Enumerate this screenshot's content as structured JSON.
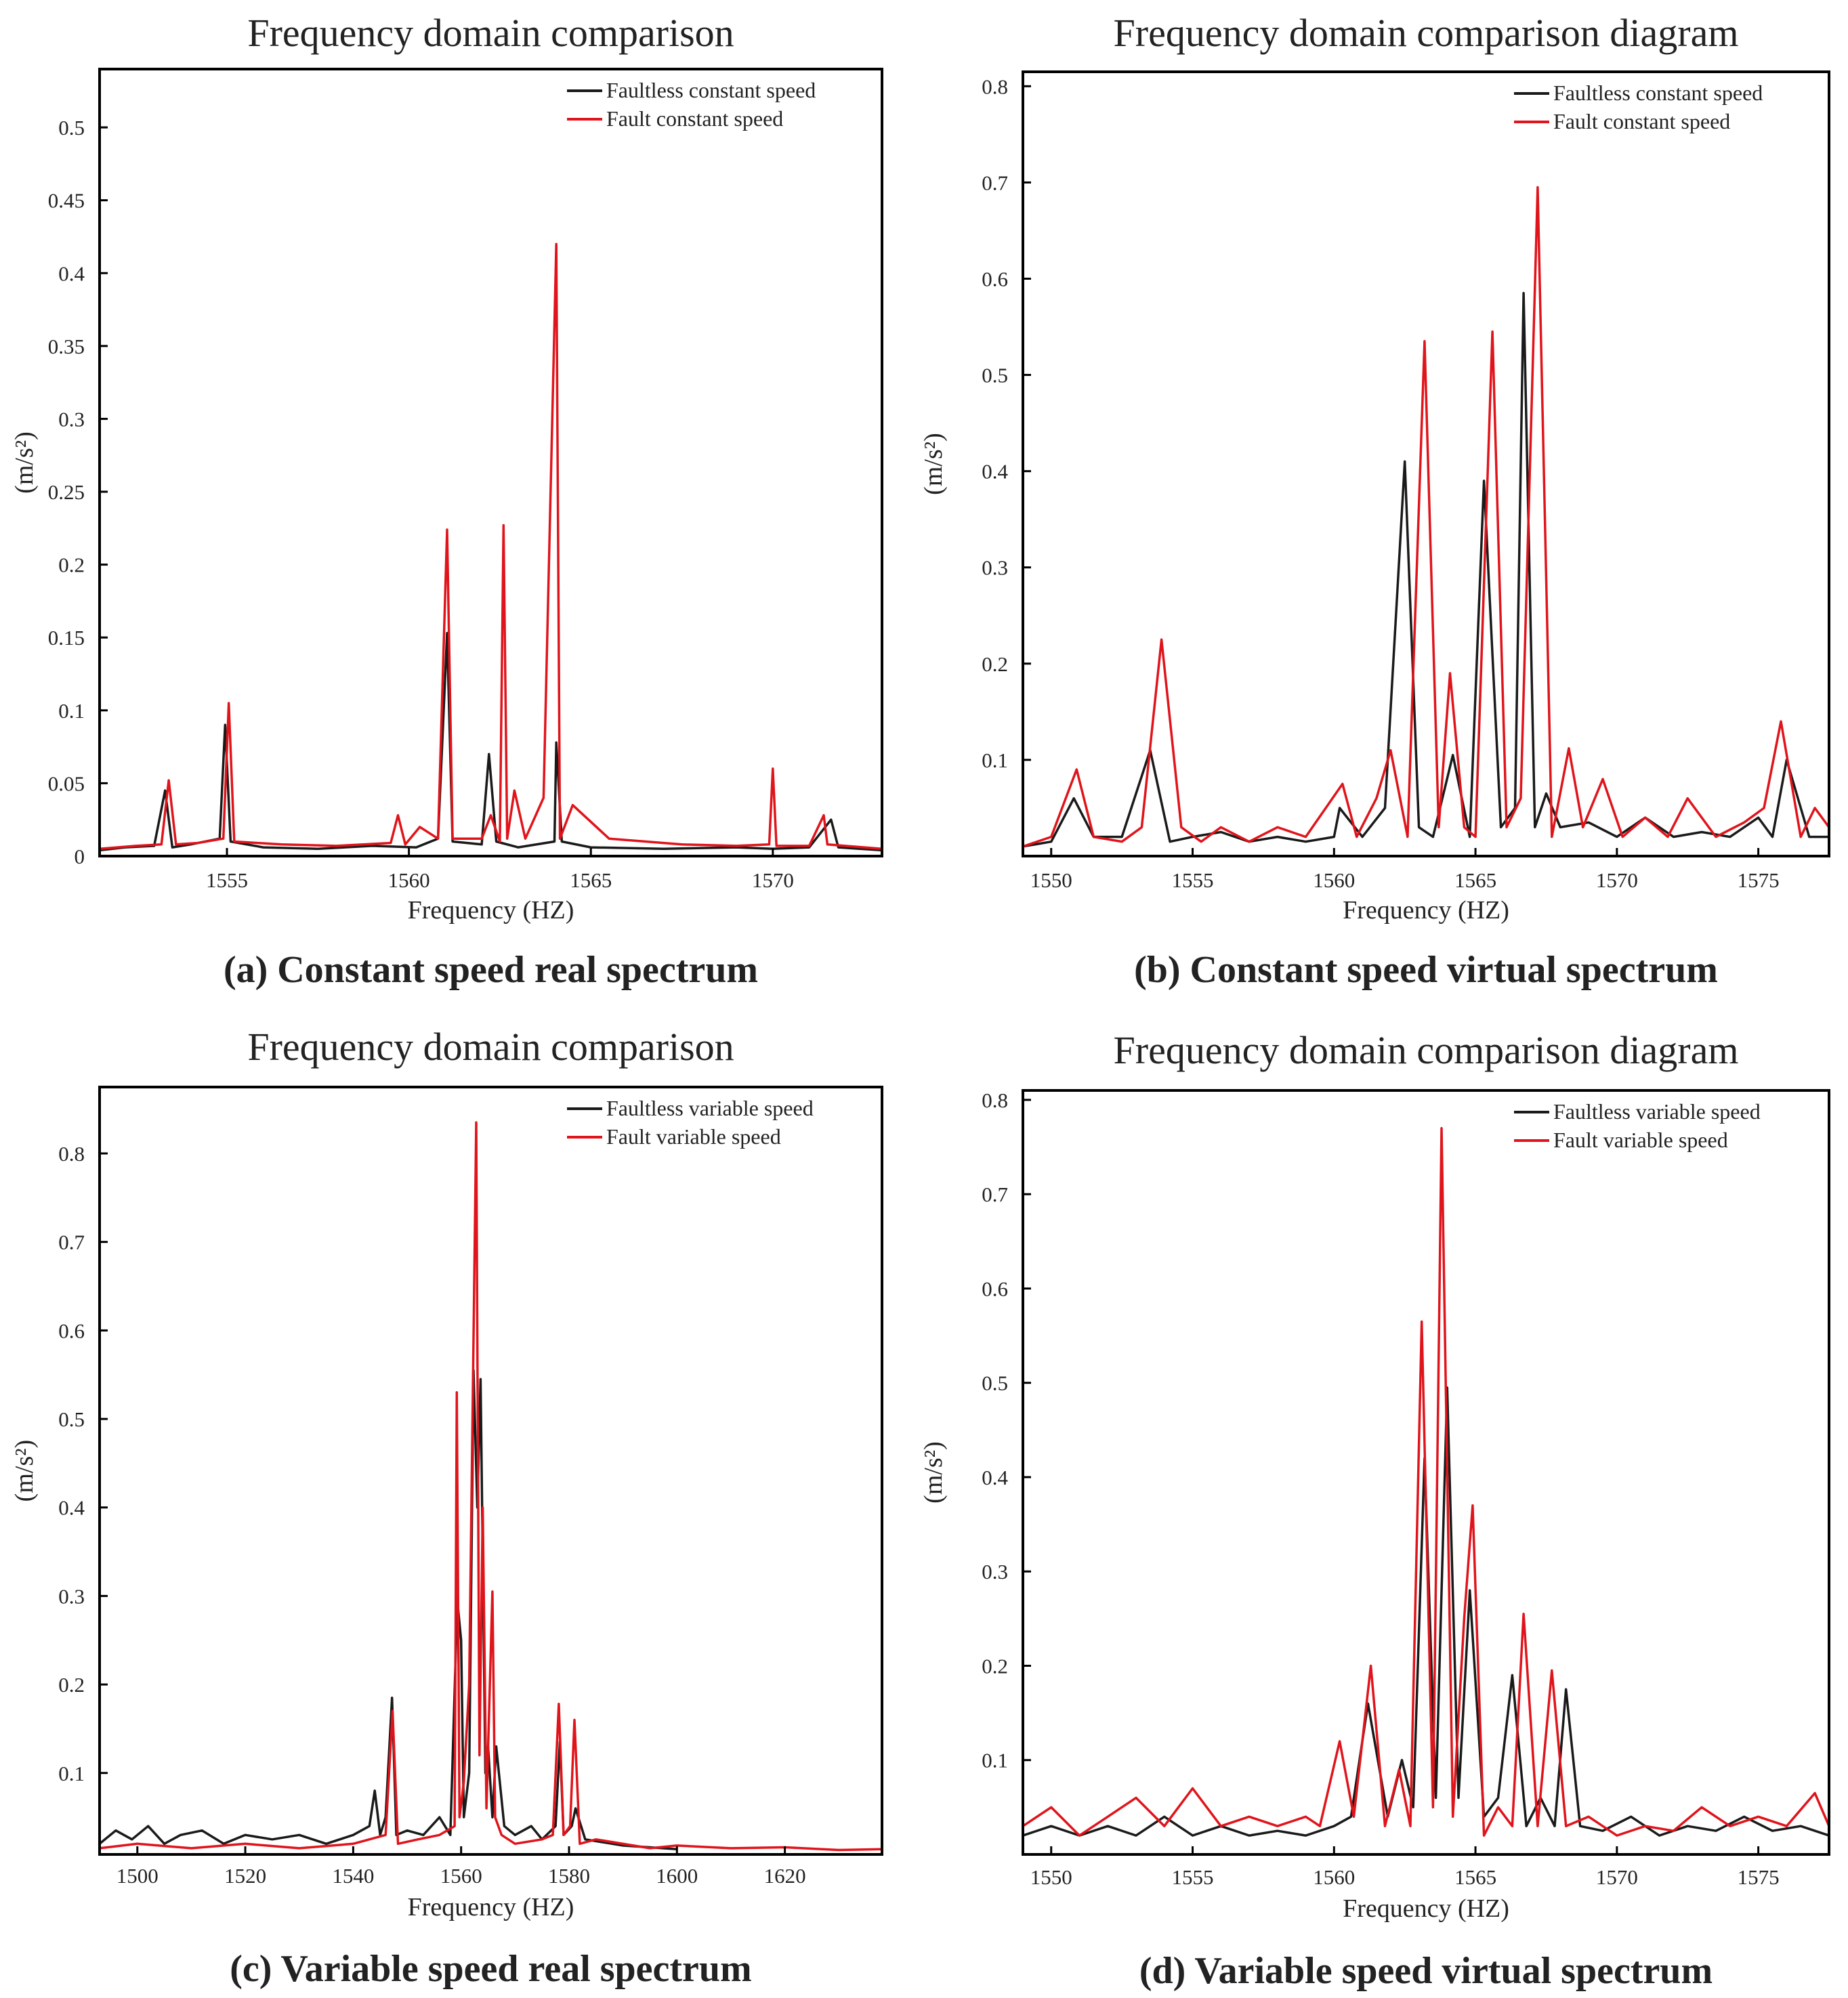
{
  "colors": {
    "faultless": "#1a1a1a",
    "fault": "#e0141b"
  },
  "chart_data": [
    {
      "id": "a",
      "type": "line",
      "title": "Frequency domain comparison",
      "caption": "(a) Constant speed real spectrum",
      "xlabel": "Frequency (HZ)",
      "ylabel": "(m/s²)",
      "xlim": [
        1551.5,
        1573
      ],
      "ylim": [
        0,
        0.54
      ],
      "xticks": [
        1555,
        1560,
        1565,
        1570
      ],
      "yticks": [
        0,
        0.05,
        0.1,
        0.15,
        0.2,
        0.25,
        0.3,
        0.35,
        0.4,
        0.45,
        0.5
      ],
      "ytick_labels": [
        "0",
        "0.05",
        "0.1",
        "0.15",
        "0.2",
        "0.25",
        "0.3",
        "0.35",
        "0.4",
        "0.45",
        "0.5"
      ],
      "legend_position": "top-right",
      "series": [
        {
          "name": "Faultless constant speed",
          "role": "faultless",
          "x": [
            1551.5,
            1552.2,
            1553.0,
            1553.3,
            1553.5,
            1554.0,
            1554.8,
            1554.95,
            1555.1,
            1556.0,
            1557.5,
            1559.0,
            1560.2,
            1560.8,
            1561.05,
            1561.2,
            1562.0,
            1562.2,
            1562.4,
            1563.0,
            1564.0,
            1564.05,
            1564.2,
            1565.0,
            1567.0,
            1569.0,
            1570.0,
            1571.0,
            1571.6,
            1571.8,
            1573.0
          ],
          "y": [
            0.004,
            0.006,
            0.007,
            0.045,
            0.006,
            0.008,
            0.012,
            0.09,
            0.01,
            0.006,
            0.005,
            0.007,
            0.006,
            0.012,
            0.153,
            0.01,
            0.008,
            0.07,
            0.01,
            0.006,
            0.01,
            0.078,
            0.01,
            0.006,
            0.005,
            0.006,
            0.005,
            0.006,
            0.025,
            0.006,
            0.004
          ]
        },
        {
          "name": "Fault constant speed",
          "role": "fault",
          "x": [
            1551.5,
            1552.5,
            1553.2,
            1553.4,
            1553.6,
            1554.2,
            1554.9,
            1555.05,
            1555.2,
            1556.5,
            1558.0,
            1559.5,
            1559.7,
            1559.9,
            1560.3,
            1560.8,
            1561.05,
            1561.2,
            1562.0,
            1562.25,
            1562.5,
            1562.6,
            1562.7,
            1562.9,
            1563.2,
            1563.7,
            1564.05,
            1564.15,
            1564.5,
            1565.5,
            1567.5,
            1569.0,
            1569.9,
            1570.0,
            1570.1,
            1571.0,
            1571.4,
            1571.5,
            1573.0
          ],
          "y": [
            0.005,
            0.007,
            0.008,
            0.052,
            0.008,
            0.009,
            0.012,
            0.105,
            0.01,
            0.008,
            0.007,
            0.009,
            0.028,
            0.008,
            0.02,
            0.012,
            0.224,
            0.012,
            0.012,
            0.028,
            0.01,
            0.227,
            0.012,
            0.045,
            0.012,
            0.04,
            0.42,
            0.012,
            0.035,
            0.012,
            0.008,
            0.007,
            0.008,
            0.06,
            0.007,
            0.007,
            0.028,
            0.008,
            0.005
          ]
        }
      ]
    },
    {
      "id": "b",
      "type": "line",
      "title": "Frequency domain comparison diagram",
      "caption": "(b) Constant speed virtual spectrum",
      "xlabel": "Frequency (HZ)",
      "ylabel": "(m/s²)",
      "xlim": [
        1549,
        1577.5
      ],
      "ylim": [
        0,
        0.815
      ],
      "xticks": [
        1550,
        1555,
        1560,
        1565,
        1570,
        1575
      ],
      "yticks": [
        0.1,
        0.2,
        0.3,
        0.4,
        0.5,
        0.6,
        0.7,
        0.8
      ],
      "ytick_labels": [
        "0.1",
        "0.2",
        "0.3",
        "0.4",
        "0.5",
        "0.6",
        "0.7",
        "0.8"
      ],
      "legend_position": "top-right",
      "series": [
        {
          "name": "Faultless constant speed",
          "role": "faultless",
          "x": [
            1549,
            1550,
            1550.8,
            1551.5,
            1552.5,
            1553.5,
            1554.2,
            1555,
            1556,
            1557,
            1558,
            1559,
            1560,
            1560.2,
            1561,
            1561.8,
            1562.5,
            1563,
            1563.5,
            1564.2,
            1564.8,
            1565.3,
            1565.9,
            1566.4,
            1566.7,
            1567.1,
            1567.5,
            1568,
            1569,
            1570,
            1571,
            1572,
            1573,
            1574,
            1575,
            1575.5,
            1576,
            1576.8,
            1577.5
          ],
          "y": [
            0.01,
            0.015,
            0.06,
            0.02,
            0.02,
            0.11,
            0.015,
            0.02,
            0.025,
            0.015,
            0.02,
            0.015,
            0.02,
            0.05,
            0.02,
            0.05,
            0.41,
            0.03,
            0.02,
            0.105,
            0.02,
            0.39,
            0.03,
            0.05,
            0.585,
            0.03,
            0.065,
            0.03,
            0.035,
            0.02,
            0.04,
            0.02,
            0.025,
            0.02,
            0.04,
            0.02,
            0.1,
            0.02,
            0.02
          ]
        },
        {
          "name": "Fault constant speed",
          "role": "fault",
          "x": [
            1549,
            1550,
            1550.9,
            1551.5,
            1552.5,
            1553.2,
            1553.9,
            1554.6,
            1555.3,
            1556,
            1557,
            1558,
            1559,
            1560.3,
            1560.8,
            1561.5,
            1562,
            1562.6,
            1563.2,
            1563.7,
            1564.1,
            1564.6,
            1565,
            1565.6,
            1566.1,
            1566.6,
            1567.2,
            1567.7,
            1568.3,
            1568.8,
            1569.5,
            1570.2,
            1571,
            1571.8,
            1572.5,
            1573.5,
            1574.5,
            1575.2,
            1575.8,
            1576.5,
            1577,
            1577.5
          ],
          "y": [
            0.01,
            0.02,
            0.09,
            0.02,
            0.015,
            0.03,
            0.225,
            0.03,
            0.015,
            0.03,
            0.015,
            0.03,
            0.02,
            0.075,
            0.02,
            0.06,
            0.11,
            0.02,
            0.535,
            0.03,
            0.19,
            0.03,
            0.02,
            0.545,
            0.03,
            0.06,
            0.695,
            0.02,
            0.112,
            0.03,
            0.08,
            0.02,
            0.04,
            0.02,
            0.06,
            0.02,
            0.035,
            0.05,
            0.14,
            0.02,
            0.05,
            0.03
          ]
        }
      ]
    },
    {
      "id": "c",
      "type": "line",
      "title": "Frequency domain comparison",
      "caption": "(c) Variable speed real spectrum",
      "xlabel": "Frequency (HZ)",
      "ylabel": "(m/s²)",
      "xlim": [
        1493,
        1638
      ],
      "ylim": [
        0.008,
        0.875
      ],
      "xticks": [
        1500,
        1520,
        1540,
        1560,
        1580,
        1600,
        1620
      ],
      "yticks": [
        0.1,
        0.2,
        0.3,
        0.4,
        0.5,
        0.6,
        0.7,
        0.8
      ],
      "ytick_labels": [
        "0.1",
        "0.2",
        "0.3",
        "0.4",
        "0.5",
        "0.6",
        "0.7",
        "0.8"
      ],
      "legend_position": "top-right",
      "series": [
        {
          "name": "Faultless variable speed",
          "role": "faultless",
          "x": [
            1493,
            1496,
            1499,
            1502,
            1505,
            1508,
            1512,
            1516,
            1520,
            1525,
            1530,
            1535,
            1540,
            1543,
            1544,
            1545,
            1546,
            1547.2,
            1548,
            1550,
            1553,
            1556,
            1558,
            1559.3,
            1560,
            1560.5,
            1561.5,
            1562.3,
            1563,
            1563.6,
            1564.5,
            1565,
            1565.8,
            1566.5,
            1568,
            1570,
            1573,
            1575,
            1577.5,
            1578.3,
            1579,
            1580.5,
            1581.2,
            1583,
            1590,
            1600
          ],
          "y": [
            0.02,
            0.035,
            0.025,
            0.04,
            0.02,
            0.03,
            0.035,
            0.02,
            0.03,
            0.025,
            0.03,
            0.02,
            0.03,
            0.04,
            0.08,
            0.03,
            0.05,
            0.185,
            0.03,
            0.035,
            0.03,
            0.05,
            0.03,
            0.295,
            0.25,
            0.05,
            0.1,
            0.555,
            0.4,
            0.545,
            0.1,
            0.13,
            0.05,
            0.13,
            0.04,
            0.03,
            0.04,
            0.025,
            0.04,
            0.135,
            0.03,
            0.04,
            0.06,
            0.025,
            0.018,
            0.014
          ]
        },
        {
          "name": "Fault variable speed",
          "role": "fault",
          "x": [
            1493,
            1500,
            1510,
            1520,
            1530,
            1540,
            1546,
            1547.3,
            1548.3,
            1552,
            1556,
            1558.8,
            1559.2,
            1559.7,
            1560.5,
            1561.5,
            1562.8,
            1563.4,
            1564,
            1564.7,
            1565.8,
            1566.3,
            1567.5,
            1570,
            1575,
            1577,
            1578.1,
            1579,
            1580.2,
            1581,
            1582,
            1585,
            1595,
            1600,
            1610,
            1620,
            1630,
            1638
          ],
          "y": [
            0.015,
            0.02,
            0.015,
            0.02,
            0.015,
            0.02,
            0.03,
            0.17,
            0.02,
            0.025,
            0.03,
            0.04,
            0.53,
            0.05,
            0.09,
            0.2,
            0.835,
            0.12,
            0.4,
            0.06,
            0.305,
            0.05,
            0.03,
            0.02,
            0.025,
            0.03,
            0.178,
            0.03,
            0.04,
            0.16,
            0.02,
            0.025,
            0.015,
            0.018,
            0.015,
            0.016,
            0.013,
            0.014
          ]
        }
      ]
    },
    {
      "id": "d",
      "type": "line",
      "title": "Frequency domain comparison diagram",
      "caption": "(d) Variable speed virtual spectrum",
      "xlabel": "Frequency (HZ)",
      "ylabel": "(m/s²)",
      "xlim": [
        1549,
        1577.5
      ],
      "ylim": [
        0,
        0.81
      ],
      "xticks": [
        1550,
        1555,
        1560,
        1565,
        1570,
        1575
      ],
      "yticks": [
        0.1,
        0.2,
        0.3,
        0.4,
        0.5,
        0.6,
        0.7,
        0.8
      ],
      "ytick_labels": [
        "0.1",
        "0.2",
        "0.3",
        "0.4",
        "0.5",
        "0.6",
        "0.7",
        "0.8"
      ],
      "legend_position": "top-right",
      "series": [
        {
          "name": "Faultless variable speed",
          "role": "faultless",
          "x": [
            1549,
            1550,
            1551,
            1552,
            1553,
            1554,
            1555,
            1556,
            1557,
            1558,
            1559,
            1560,
            1560.6,
            1561.2,
            1561.9,
            1562.4,
            1562.8,
            1563.2,
            1563.6,
            1564,
            1564.4,
            1564.8,
            1565.3,
            1565.8,
            1566.3,
            1566.8,
            1567.3,
            1567.8,
            1568.2,
            1568.7,
            1569.5,
            1570.5,
            1571.5,
            1572.5,
            1573.5,
            1574.5,
            1575.5,
            1576.5,
            1577.5
          ],
          "y": [
            0.02,
            0.03,
            0.02,
            0.03,
            0.02,
            0.04,
            0.02,
            0.03,
            0.02,
            0.025,
            0.02,
            0.03,
            0.04,
            0.16,
            0.04,
            0.1,
            0.05,
            0.42,
            0.06,
            0.495,
            0.06,
            0.28,
            0.04,
            0.06,
            0.19,
            0.03,
            0.06,
            0.03,
            0.175,
            0.03,
            0.025,
            0.04,
            0.02,
            0.03,
            0.025,
            0.04,
            0.025,
            0.03,
            0.02
          ]
        },
        {
          "name": "Fault variable speed",
          "role": "fault",
          "x": [
            1549,
            1550,
            1551,
            1552,
            1553,
            1554,
            1555,
            1556,
            1557,
            1558,
            1559,
            1559.5,
            1560.2,
            1560.7,
            1561.3,
            1561.8,
            1562.3,
            1562.7,
            1563.1,
            1563.5,
            1563.8,
            1564.2,
            1564.6,
            1564.9,
            1565.3,
            1565.8,
            1566.3,
            1566.7,
            1567.2,
            1567.7,
            1568.2,
            1569,
            1570,
            1571,
            1572,
            1573,
            1574,
            1575,
            1576,
            1577,
            1577.5
          ],
          "y": [
            0.03,
            0.05,
            0.02,
            0.04,
            0.06,
            0.03,
            0.07,
            0.03,
            0.04,
            0.03,
            0.04,
            0.03,
            0.12,
            0.04,
            0.2,
            0.03,
            0.09,
            0.03,
            0.565,
            0.05,
            0.77,
            0.04,
            0.25,
            0.37,
            0.02,
            0.05,
            0.03,
            0.255,
            0.03,
            0.195,
            0.03,
            0.04,
            0.02,
            0.03,
            0.025,
            0.05,
            0.03,
            0.04,
            0.03,
            0.065,
            0.03
          ]
        }
      ]
    }
  ]
}
